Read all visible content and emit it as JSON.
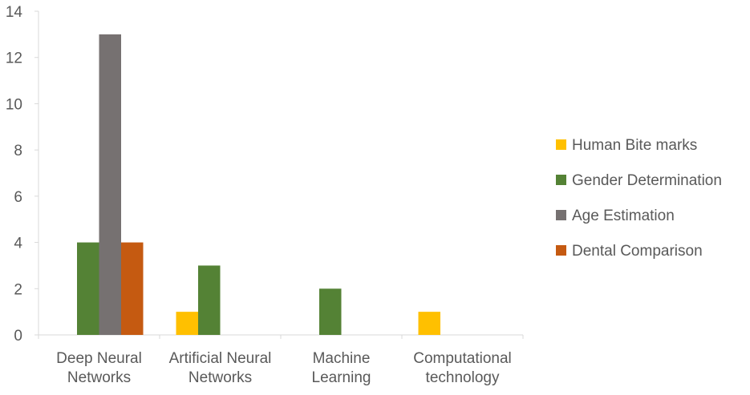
{
  "chart_data": {
    "type": "bar",
    "categories": [
      [
        "Deep Neural",
        "Networks"
      ],
      [
        "Artificial Neural",
        "Networks"
      ],
      [
        "Machine",
        "Learning"
      ],
      [
        "Computational",
        "technology"
      ]
    ],
    "series": [
      {
        "name": "Human Bite marks",
        "color": "#FFC000",
        "values": [
          0,
          1,
          0,
          1
        ]
      },
      {
        "name": "Gender Determination",
        "color": "#548235",
        "values": [
          4,
          3,
          2,
          0
        ]
      },
      {
        "name": "Age Estimation",
        "color": "#767171",
        "values": [
          13,
          0,
          0,
          0
        ]
      },
      {
        "name": "Dental Comparison",
        "color": "#C55A11",
        "values": [
          4,
          0,
          0,
          0
        ]
      }
    ],
    "ylim": [
      0,
      14
    ],
    "yticks": [
      0,
      2,
      4,
      6,
      8,
      10,
      12,
      14
    ],
    "grid": false,
    "legend": "right",
    "axis_color": "#D9D9D9"
  }
}
